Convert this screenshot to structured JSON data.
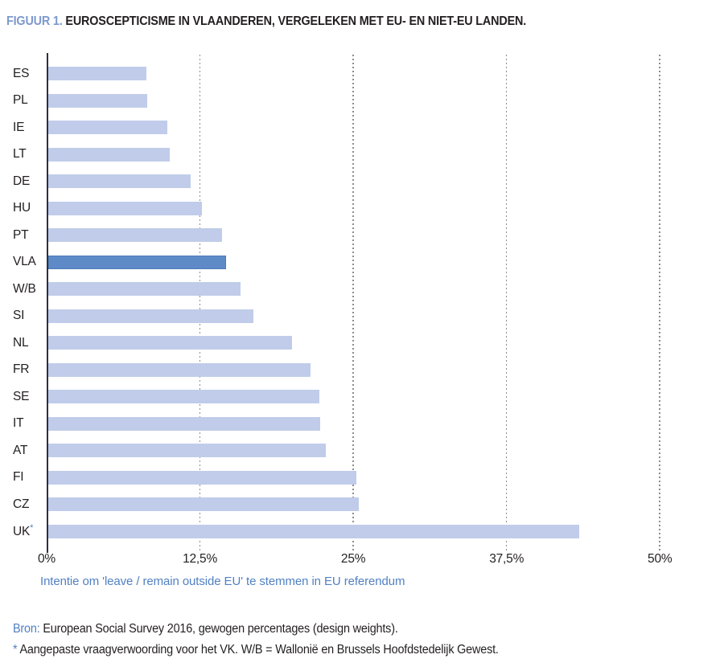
{
  "title": {
    "prefix": "FIGUUR 1.",
    "text": " EUROSCEPTICISME IN VLAANDEREN, VERGELEKEN MET EU- EN NIET-EU LANDEN."
  },
  "chart_data": {
    "type": "bar",
    "orientation": "horizontal",
    "categories": [
      "ES",
      "PL",
      "IE",
      "LT",
      "DE",
      "HU",
      "PT",
      "VLA",
      "W/B",
      "SI",
      "NL",
      "FR",
      "SE",
      "IT",
      "AT",
      "FI",
      "CZ",
      "UK*"
    ],
    "values": [
      8.0,
      8.1,
      9.7,
      9.9,
      11.6,
      12.5,
      14.2,
      14.5,
      15.7,
      16.7,
      19.9,
      21.4,
      22.1,
      22.2,
      22.6,
      25.1,
      25.3,
      43.3
    ],
    "highlight_category": "VLA",
    "x_ticks": [
      "0%",
      "12,5%",
      "25%",
      "37,5%",
      "50%"
    ],
    "x_tick_values": [
      0,
      12.5,
      25,
      37.5,
      50
    ],
    "xlabel": "Intentie om 'leave / remain outside EU' te stemmen in EU referendum",
    "xlim": [
      0,
      54.4
    ],
    "grid": "vertical dotted gridlines at labeled ticks, no baseline",
    "legend": "none",
    "bar_color": "#c0cce9",
    "highlight_color": "#5e8ac8"
  },
  "footer": {
    "source_label": "Bron:",
    "source_text": " European Social Survey 2016, gewogen percentages (design weights).",
    "note_marker": "*",
    "note_text": " Aangepaste vraagverwoording voor het VK. W/B = Wallonië en Brussels Hoofdstedelijk Gewest."
  },
  "colors": {
    "title_prefix_blue": "#7d99ce",
    "caption_blue": "#5181c3",
    "text_dark": "#231f20",
    "axis_line": "#2a3040",
    "gridline_gray": "#8d8d8d"
  }
}
